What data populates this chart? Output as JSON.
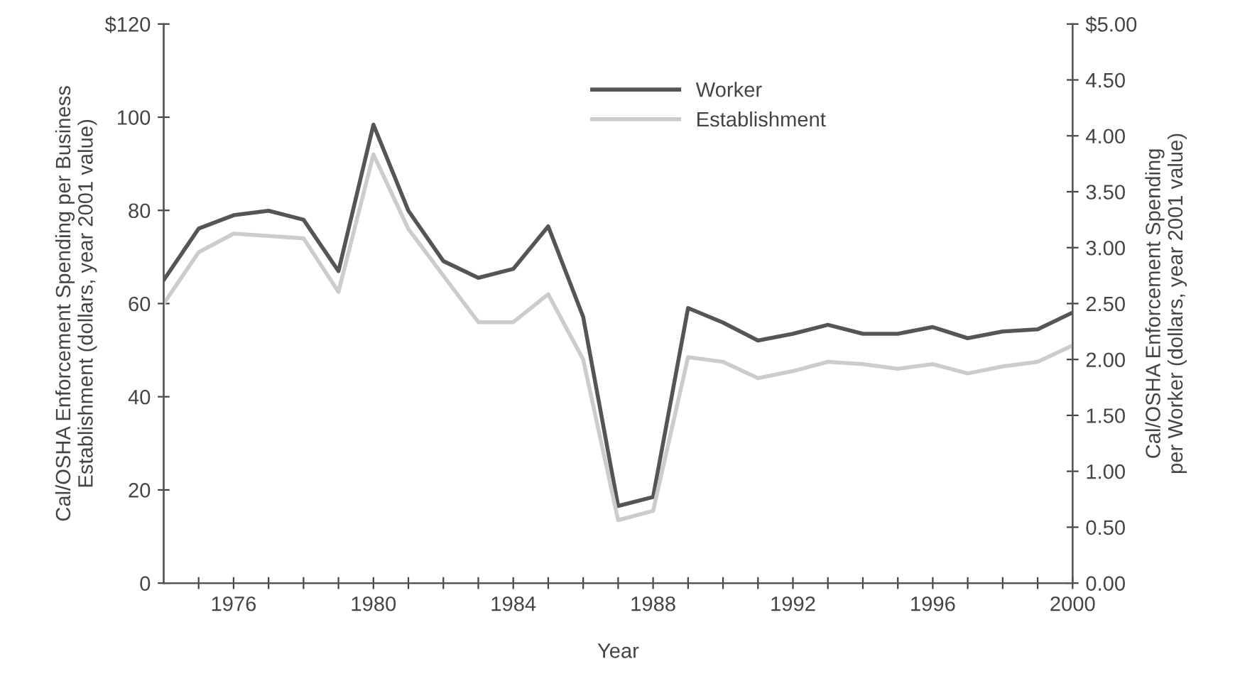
{
  "chart_data": {
    "type": "line",
    "xlabel": "Year",
    "ylabel": "Cal/OSHA Enforcement Spending per Business\nEstablishment (dollars, year 2001 value)",
    "y2label": "Cal/OSHA Enforcement Spending\nper Worker (dollars, year 2001 value)",
    "x": [
      1974,
      1975,
      1976,
      1977,
      1978,
      1979,
      1980,
      1981,
      1982,
      1983,
      1984,
      1985,
      1986,
      1987,
      1988,
      1989,
      1990,
      1991,
      1992,
      1993,
      1994,
      1995,
      1996,
      1997,
      1998,
      1999,
      2000
    ],
    "series": [
      {
        "name": "Worker",
        "color": "#555555",
        "axis": "y2",
        "values": [
          2.71,
          3.17,
          3.29,
          3.33,
          3.25,
          2.79,
          4.1,
          3.33,
          2.88,
          2.73,
          2.81,
          3.19,
          2.38,
          0.69,
          0.77,
          2.46,
          2.33,
          2.17,
          2.23,
          2.31,
          2.23,
          2.23,
          2.29,
          2.19,
          2.25,
          2.27,
          2.42
        ]
      },
      {
        "name": "Establishment",
        "color": "#cccccc",
        "axis": "y",
        "values": [
          60,
          71,
          75,
          74.5,
          74,
          62.5,
          92,
          76,
          66,
          56,
          56,
          62,
          48,
          13.5,
          15.5,
          48.5,
          47.5,
          44,
          45.5,
          47.5,
          47,
          46,
          47,
          45,
          46.5,
          47.5,
          51
        ]
      }
    ],
    "xlim": [
      1974,
      2000
    ],
    "xticks": [
      {
        "value": 1975,
        "label": null
      },
      {
        "value": 1976,
        "label": "1976"
      },
      {
        "value": 1977,
        "label": null
      },
      {
        "value": 1978,
        "label": null
      },
      {
        "value": 1979,
        "label": null
      },
      {
        "value": 1980,
        "label": "1980"
      },
      {
        "value": 1981,
        "label": null
      },
      {
        "value": 1982,
        "label": null
      },
      {
        "value": 1983,
        "label": null
      },
      {
        "value": 1984,
        "label": "1984"
      },
      {
        "value": 1985,
        "label": null
      },
      {
        "value": 1986,
        "label": null
      },
      {
        "value": 1987,
        "label": null
      },
      {
        "value": 1988,
        "label": "1988"
      },
      {
        "value": 1989,
        "label": null
      },
      {
        "value": 1990,
        "label": null
      },
      {
        "value": 1991,
        "label": null
      },
      {
        "value": 1992,
        "label": "1992"
      },
      {
        "value": 1993,
        "label": null
      },
      {
        "value": 1994,
        "label": null
      },
      {
        "value": 1995,
        "label": null
      },
      {
        "value": 1996,
        "label": "1996"
      },
      {
        "value": 1997,
        "label": null
      },
      {
        "value": 1998,
        "label": null
      },
      {
        "value": 1999,
        "label": null
      },
      {
        "value": 2000,
        "label": "2000"
      }
    ],
    "ylim": [
      0,
      120
    ],
    "yticks": [
      0,
      20,
      40,
      60,
      80,
      100,
      {
        "value": 120,
        "label": "$120"
      }
    ],
    "y2lim": [
      0,
      5
    ],
    "y2ticks": [
      {
        "value": 0,
        "label": "0.00"
      },
      {
        "value": 0.5,
        "label": "0.50"
      },
      {
        "value": 1,
        "label": "1.00"
      },
      {
        "value": 1.5,
        "label": "1.50"
      },
      {
        "value": 2,
        "label": "2.00"
      },
      {
        "value": 2.5,
        "label": "2.50"
      },
      {
        "value": 3,
        "label": "3.00"
      },
      {
        "value": 3.5,
        "label": "3.50"
      },
      {
        "value": 4,
        "label": "4.00"
      },
      {
        "value": 4.5,
        "label": "4.50"
      },
      {
        "value": 5,
        "label": "$5.00"
      }
    ],
    "legend": "top",
    "grid": false,
    "marker": "none",
    "line_style": "solid"
  }
}
